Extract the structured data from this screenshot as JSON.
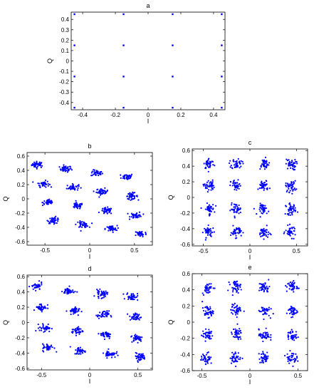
{
  "chart_data": [
    {
      "type": "scatter",
      "title": "a",
      "xlabel": "I",
      "ylabel": "Q",
      "xlim": [
        -0.47,
        0.47
      ],
      "ylim": [
        -0.47,
        0.47
      ],
      "xticks": [
        -0.4,
        -0.2,
        0,
        0.2,
        0.4
      ],
      "xtick_labels": [
        "-0.4",
        "-0.2",
        "0",
        "0.2",
        "0.4"
      ],
      "yticks": [
        -0.4,
        -0.3,
        -0.2,
        -0.1,
        0,
        0.1,
        0.2,
        0.3,
        0.4
      ],
      "ytick_labels": [
        "-0.4",
        "-0.3",
        "-0.2",
        "-0.1",
        "0",
        "0.1",
        "0.2",
        "0.3",
        "0.4"
      ],
      "grid": false,
      "marker_color": "#0000ff",
      "points": [
        [
          -0.45,
          0.45
        ],
        [
          -0.15,
          0.45
        ],
        [
          0.15,
          0.45
        ],
        [
          0.45,
          0.45
        ],
        [
          -0.45,
          0.15
        ],
        [
          -0.15,
          0.15
        ],
        [
          0.15,
          0.15
        ],
        [
          0.45,
          0.15
        ],
        [
          -0.45,
          -0.15
        ],
        [
          -0.15,
          -0.15
        ],
        [
          0.15,
          -0.15
        ],
        [
          0.45,
          -0.15
        ],
        [
          -0.45,
          -0.45
        ],
        [
          -0.15,
          -0.45
        ],
        [
          0.15,
          -0.45
        ],
        [
          0.45,
          -0.45
        ]
      ]
    },
    {
      "type": "scatter",
      "title": "b",
      "xlabel": "I",
      "ylabel": "Q",
      "xlim": [
        -0.7,
        0.7
      ],
      "ylim": [
        -0.65,
        0.65
      ],
      "xticks": [
        -0.5,
        0,
        0.5
      ],
      "xtick_labels": [
        "-0.5",
        "0",
        "0.5"
      ],
      "yticks": [
        -0.6,
        -0.4,
        -0.2,
        0,
        0.2,
        0.4,
        0.6
      ],
      "ytick_labels": [
        "-0.6",
        "-0.4",
        "-0.2",
        "0",
        "0.2",
        "0.4",
        "0.6"
      ],
      "grid": false,
      "marker_color": "#0000ff",
      "cluster_spread": [
        0.033,
        0.022
      ],
      "points_per_cluster": 40,
      "cluster_centers": [
        [
          -0.58,
          0.48
        ],
        [
          -0.27,
          0.42
        ],
        [
          0.08,
          0.36
        ],
        [
          0.42,
          0.31
        ],
        [
          -0.52,
          0.21
        ],
        [
          -0.19,
          0.16
        ],
        [
          0.14,
          0.1
        ],
        [
          0.47,
          0.04
        ],
        [
          -0.46,
          -0.05
        ],
        [
          -0.14,
          -0.1
        ],
        [
          0.19,
          -0.17
        ],
        [
          0.52,
          -0.23
        ],
        [
          -0.4,
          -0.3
        ],
        [
          -0.08,
          -0.36
        ],
        [
          0.24,
          -0.42
        ],
        [
          0.57,
          -0.49
        ]
      ]
    },
    {
      "type": "scatter",
      "title": "c",
      "xlabel": "I",
      "ylabel": "Q",
      "xlim": [
        -0.62,
        0.62
      ],
      "ylim": [
        -0.62,
        0.62
      ],
      "xticks": [
        -0.5,
        0,
        0.5
      ],
      "xtick_labels": [
        "-0.5",
        "0",
        "0.5"
      ],
      "yticks": [
        -0.6,
        -0.4,
        -0.2,
        0,
        0.2,
        0.4,
        0.6
      ],
      "ytick_labels": [
        "-0.6",
        "-0.4",
        "-0.2",
        "0",
        "0.2",
        "0.4",
        "0.6"
      ],
      "grid": false,
      "marker_color": "#0000ff",
      "cluster_spread": [
        0.028,
        0.035
      ],
      "points_per_cluster": 40,
      "cluster_centers": [
        [
          -0.44,
          0.43
        ],
        [
          -0.14,
          0.43
        ],
        [
          0.15,
          0.43
        ],
        [
          0.44,
          0.42
        ],
        [
          -0.44,
          0.15
        ],
        [
          -0.15,
          0.15
        ],
        [
          0.15,
          0.15
        ],
        [
          0.44,
          0.14
        ],
        [
          -0.44,
          -0.15
        ],
        [
          -0.15,
          -0.15
        ],
        [
          0.15,
          -0.15
        ],
        [
          0.44,
          -0.15
        ],
        [
          -0.44,
          -0.44
        ],
        [
          -0.15,
          -0.44
        ],
        [
          0.15,
          -0.45
        ],
        [
          0.44,
          -0.44
        ]
      ]
    },
    {
      "type": "scatter",
      "title": "d",
      "xlabel": "I",
      "ylabel": "Q",
      "xlim": [
        -0.65,
        0.65
      ],
      "ylim": [
        -0.62,
        0.62
      ],
      "xticks": [
        -0.5,
        0,
        0.5
      ],
      "xtick_labels": [
        "-0.5",
        "0",
        "0.5"
      ],
      "yticks": [
        -0.6,
        -0.4,
        -0.2,
        0,
        0.2,
        0.4,
        0.6
      ],
      "ytick_labels": [
        "-0.6",
        "-0.4",
        "-0.2",
        "0",
        "0.2",
        "0.4",
        "0.6"
      ],
      "grid": false,
      "marker_color": "#0000ff",
      "cluster_spread": [
        0.03,
        0.025
      ],
      "points_per_cluster": 40,
      "cluster_centers": [
        [
          -0.55,
          0.47
        ],
        [
          -0.22,
          0.41
        ],
        [
          0.12,
          0.37
        ],
        [
          0.44,
          0.34
        ],
        [
          -0.5,
          0.2
        ],
        [
          -0.17,
          0.15
        ],
        [
          0.14,
          0.1
        ],
        [
          0.47,
          0.07
        ],
        [
          -0.46,
          -0.07
        ],
        [
          -0.13,
          -0.11
        ],
        [
          0.17,
          -0.16
        ],
        [
          0.49,
          -0.2
        ],
        [
          -0.43,
          -0.33
        ],
        [
          -0.1,
          -0.37
        ],
        [
          0.21,
          -0.41
        ],
        [
          0.52,
          -0.45
        ]
      ]
    },
    {
      "type": "scatter",
      "title": "e",
      "xlabel": "I",
      "ylabel": "Q",
      "xlim": [
        -0.6,
        0.6
      ],
      "ylim": [
        -0.6,
        0.6
      ],
      "xticks": [
        -0.5,
        0,
        0.5
      ],
      "xtick_labels": [
        "-0.5",
        "0",
        "0.5"
      ],
      "yticks": [
        -0.6,
        -0.4,
        -0.2,
        0,
        0.2,
        0.4,
        0.6
      ],
      "ytick_labels": [
        "-0.6",
        "-0.4",
        "-0.2",
        "0",
        "0.2",
        "0.4",
        "0.6"
      ],
      "grid": false,
      "marker_color": "#0000ff",
      "cluster_spread": [
        0.028,
        0.035
      ],
      "points_per_cluster": 40,
      "cluster_centers": [
        [
          -0.44,
          0.42
        ],
        [
          -0.15,
          0.44
        ],
        [
          0.15,
          0.43
        ],
        [
          0.44,
          0.44
        ],
        [
          -0.44,
          0.13
        ],
        [
          -0.14,
          0.15
        ],
        [
          0.15,
          0.14
        ],
        [
          0.44,
          0.14
        ],
        [
          -0.44,
          -0.16
        ],
        [
          -0.14,
          -0.15
        ],
        [
          0.15,
          -0.16
        ],
        [
          0.44,
          -0.17
        ],
        [
          -0.45,
          -0.45
        ],
        [
          -0.15,
          -0.44
        ],
        [
          0.15,
          -0.44
        ],
        [
          0.43,
          -0.44
        ]
      ]
    }
  ]
}
